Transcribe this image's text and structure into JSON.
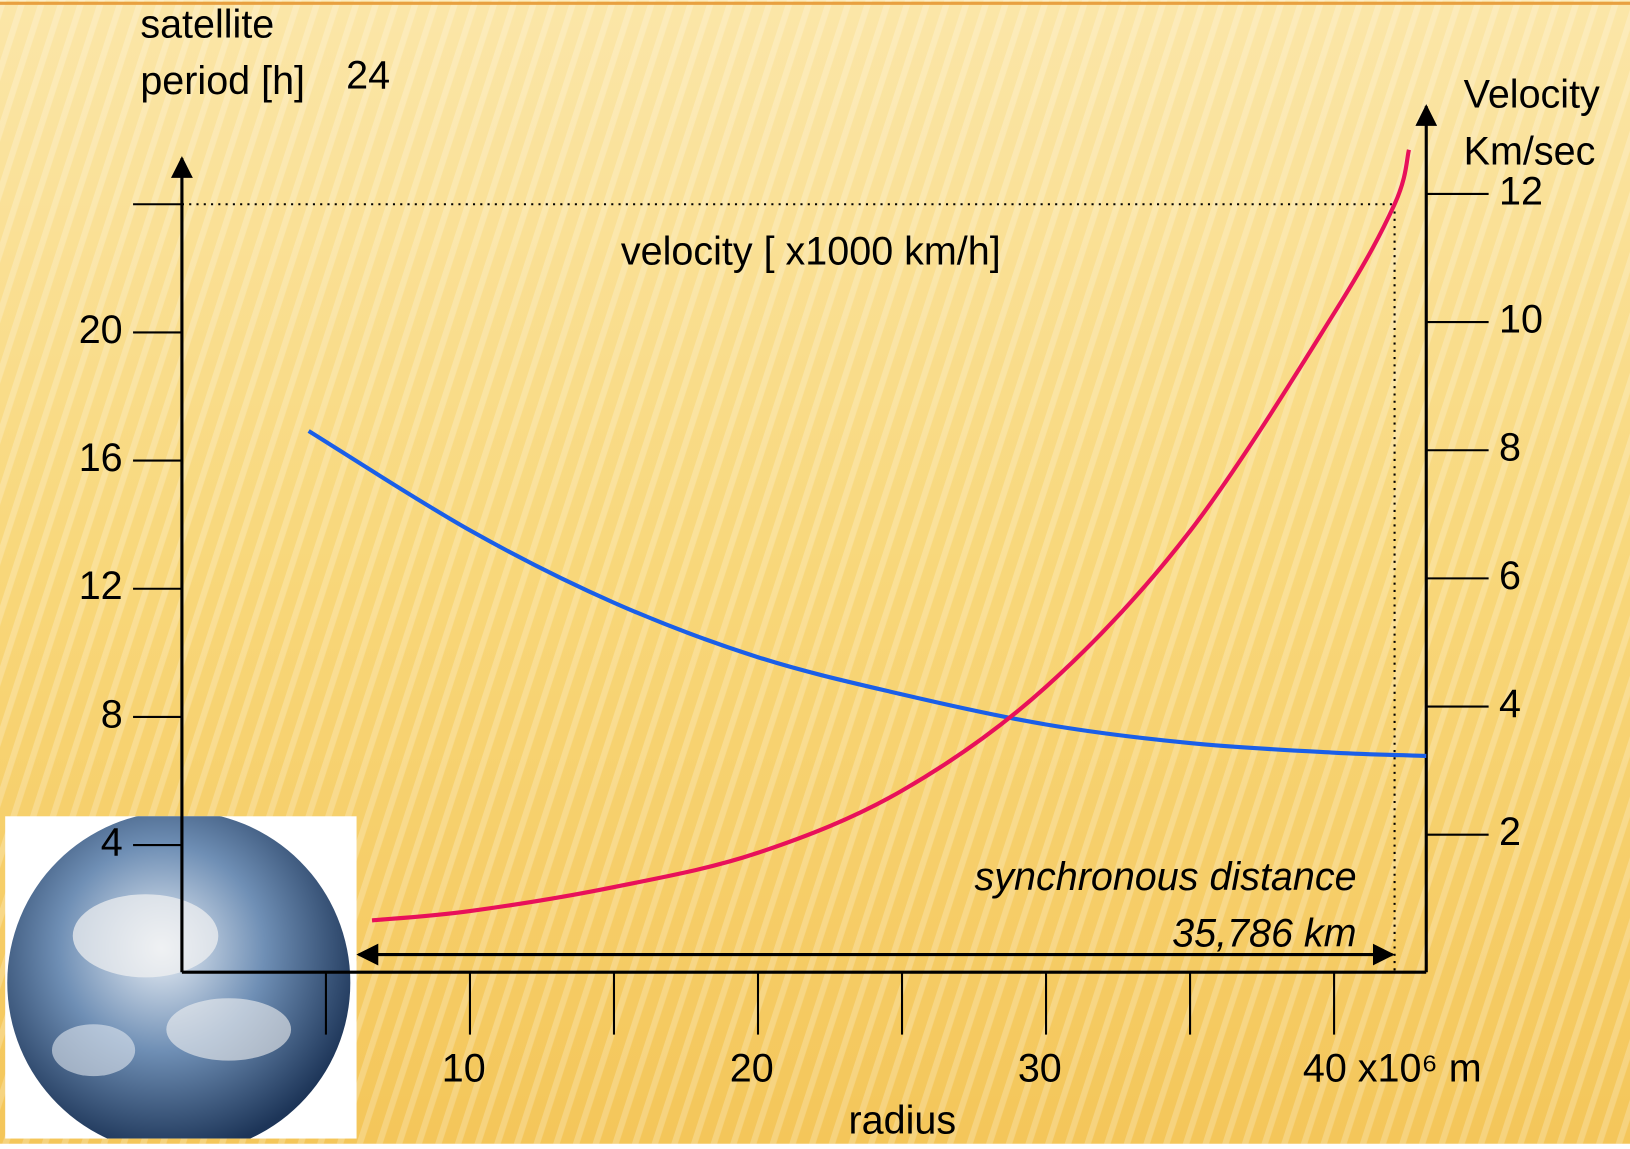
{
  "chart_data": {
    "type": "line",
    "ylabel": [
      "satellite",
      "period [h]"
    ],
    "y2label": [
      "Velocity",
      "Km/sec"
    ],
    "xlabel": "radius",
    "annotations": [
      "synchronous distance",
      "35,786 km"
    ],
    "xlim": [
      0,
      43.2
    ],
    "xticks": [
      10,
      20,
      30,
      {
        "value": 40,
        "label": "40 x10⁶ m"
      }
    ],
    "minor_xticks": [
      5,
      15,
      25,
      35
    ],
    "ylim": [
      0,
      25.5
    ],
    "yticks": [
      4,
      8,
      12,
      16,
      20,
      24
    ],
    "y2lim": [
      0,
      13.4
    ],
    "y2ticks": [
      2,
      4,
      6,
      8,
      10,
      12
    ],
    "synchronous_radius": 42.1,
    "synchronous_period": 24,
    "series": [
      {
        "name": "velocity [ x1000 km/h]",
        "color": "#1a5fe8",
        "axis": "y2",
        "x": [
          4.4,
          10,
          15,
          20,
          25,
          30,
          35,
          40,
          43.2
        ],
        "values": [
          8.3,
          6.75,
          5.62,
          4.77,
          4.19,
          3.72,
          3.43,
          3.28,
          3.23
        ]
      },
      {
        "color": "#e8105a",
        "x": [
          6.6,
          10,
          15,
          20,
          25,
          30,
          35,
          40,
          42.1,
          42.6
        ],
        "values": [
          1.65,
          1.94,
          2.69,
          3.76,
          5.7,
          8.94,
          13.8,
          20.6,
          24,
          25.7
        ]
      }
    ]
  }
}
